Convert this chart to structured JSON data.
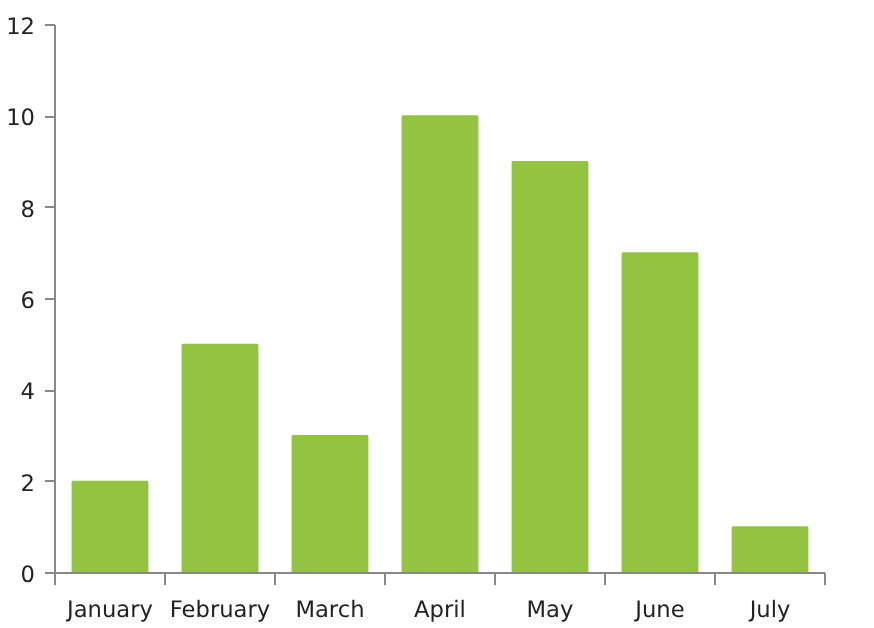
{
  "chart_data": {
    "type": "bar",
    "categories": [
      "January",
      "February",
      "March",
      "April",
      "May",
      "June",
      "July"
    ],
    "values": [
      2,
      5,
      3,
      10,
      9,
      7,
      1
    ],
    "color": "#92c441",
    "ylim": [
      0,
      12
    ],
    "yticks": [
      0,
      2,
      4,
      6,
      8,
      10,
      12
    ],
    "grid": false
  }
}
